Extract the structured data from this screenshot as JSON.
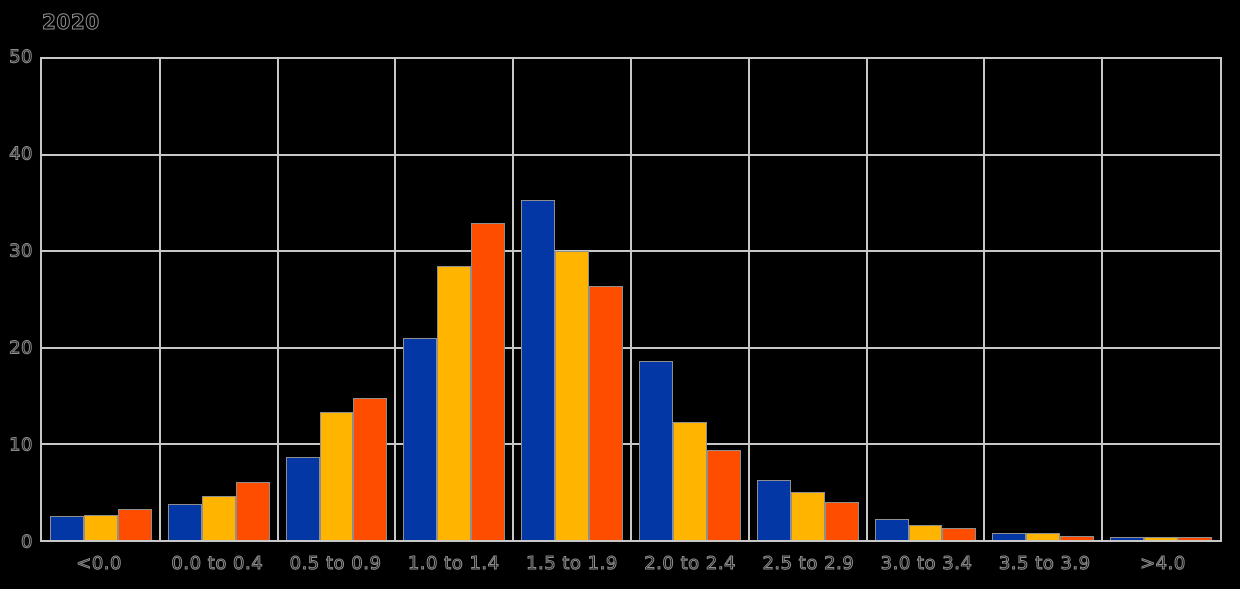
{
  "chart_data": {
    "type": "bar",
    "title": "2020",
    "categories": [
      "<0.0",
      "0.0 to 0.4",
      "0.5 to 0.9",
      "1.0 to 1.4",
      "1.5 to 1.9",
      "2.0 to 2.4",
      "2.5 to 2.9",
      "3.0 to 3.4",
      "3.5 to 3.9",
      ">4.0"
    ],
    "series": [
      {
        "name": "blue-series",
        "color": "#0437A6",
        "values": [
          2.5,
          3.7,
          8.6,
          21.0,
          35.3,
          18.6,
          6.2,
          2.2,
          0.7,
          0.3
        ]
      },
      {
        "name": "amber-series",
        "color": "#FFB400",
        "values": [
          2.6,
          4.6,
          13.3,
          28.5,
          30.0,
          12.3,
          5.0,
          1.6,
          0.7,
          0.3
        ]
      },
      {
        "name": "orange-series",
        "color": "#FF4D00",
        "values": [
          3.2,
          6.0,
          14.8,
          33.0,
          26.4,
          9.4,
          3.9,
          1.3,
          0.4,
          0.3
        ]
      }
    ],
    "xlabel": "",
    "ylabel": "",
    "ylim": [
      0,
      50
    ],
    "yticks": [
      0,
      10,
      20,
      30,
      40,
      50
    ],
    "grid": true,
    "legend_position": "none",
    "background_color": "#000000",
    "gridline_color": "#c8c8c8",
    "text_outline_color": "#8f8f8f",
    "bar_border_color": "#8f8f8f"
  }
}
